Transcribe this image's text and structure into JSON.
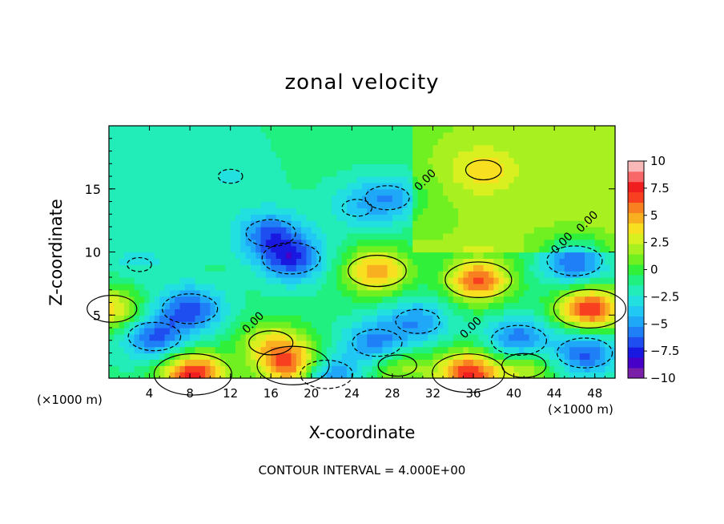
{
  "chart_data": {
    "type": "heatmap",
    "title": "zonal velocity",
    "xlabel": "X-coordinate",
    "ylabel": "Z-coordinate",
    "x_unit": "(×1000 m)",
    "x_unit_right": "(×1000 m)",
    "x_ticks": [
      4,
      8,
      12,
      16,
      20,
      24,
      28,
      32,
      36,
      40,
      44,
      48
    ],
    "y_ticks": [
      5,
      10,
      15
    ],
    "xlim": [
      0,
      50
    ],
    "ylim": [
      0,
      20
    ],
    "colorbar": {
      "ticks": [
        "10",
        "7.5",
        "5",
        "2.5",
        "0",
        "−2.5",
        "−5",
        "−7.5",
        "−10"
      ],
      "levels": [
        -10,
        -9,
        -8,
        -7,
        -6,
        -5,
        -4,
        -3,
        -2,
        -1,
        0,
        1,
        2,
        3,
        4,
        5,
        6,
        7,
        8,
        9,
        10
      ],
      "colors": [
        "#7a1fa8",
        "#4600c8",
        "#1818e0",
        "#1e4ef0",
        "#1f7ff6",
        "#20a8f8",
        "#22c8f4",
        "#23e0e0",
        "#22ecb8",
        "#20f080",
        "#30f03a",
        "#70f020",
        "#a8f020",
        "#d8f020",
        "#f8e020",
        "#f8b020",
        "#f88020",
        "#f84020",
        "#f01e1e",
        "#f86868",
        "#f8b8b8"
      ]
    },
    "contour_labels": [
      "0.00",
      "0.00",
      "0.00",
      "0.00",
      "0.00"
    ],
    "contour_interval_text": "CONTOUR INTERVAL =  4.000E+00",
    "features": [
      {
        "x": 8.3,
        "z": 0.3,
        "u": 11,
        "sign": "positive"
      },
      {
        "x": 18.2,
        "z": 1.0,
        "u": 10,
        "sign": "positive"
      },
      {
        "x": 35.5,
        "z": 0.4,
        "u": 10,
        "sign": "positive"
      },
      {
        "x": 47.5,
        "z": 5.5,
        "u": 10,
        "sign": "positive"
      },
      {
        "x": 36.5,
        "z": 7.8,
        "u": 9,
        "sign": "positive"
      },
      {
        "x": 26.5,
        "z": 8.5,
        "u": 7.5,
        "sign": "positive"
      },
      {
        "x": 0.3,
        "z": 5.5,
        "u": 6,
        "sign": "positive"
      },
      {
        "x": 16,
        "z": 2.8,
        "u": 5,
        "sign": "positive"
      },
      {
        "x": 41,
        "z": 1.0,
        "u": 5,
        "sign": "positive"
      },
      {
        "x": 28.5,
        "z": 1.0,
        "u": 4,
        "sign": "positive"
      },
      {
        "x": 37,
        "z": 16.5,
        "u": 3.5,
        "sign": "positive"
      },
      {
        "x": 18,
        "z": 9.5,
        "u": -7.5,
        "sign": "negative"
      },
      {
        "x": 16,
        "z": 11.5,
        "u": -6,
        "sign": "negative"
      },
      {
        "x": 8,
        "z": 5.5,
        "u": -7,
        "sign": "negative"
      },
      {
        "x": 4.5,
        "z": 3.3,
        "u": -6.5,
        "sign": "negative"
      },
      {
        "x": 47,
        "z": 2.0,
        "u": -7,
        "sign": "negative"
      },
      {
        "x": 46,
        "z": 9.3,
        "u": -7,
        "sign": "negative"
      },
      {
        "x": 40.5,
        "z": 3.0,
        "u": -7,
        "sign": "negative"
      },
      {
        "x": 26.5,
        "z": 2.8,
        "u": -6,
        "sign": "negative"
      },
      {
        "x": 30.5,
        "z": 4.5,
        "u": -5,
        "sign": "negative"
      },
      {
        "x": 27.5,
        "z": 14.3,
        "u": -5,
        "sign": "negative"
      },
      {
        "x": 21.5,
        "z": 0.3,
        "u": -6.5,
        "sign": "negative"
      },
      {
        "x": 24.5,
        "z": 13.5,
        "u": -2.5,
        "sign": "negative"
      },
      {
        "x": 12,
        "z": 16,
        "u": -1.5,
        "sign": "negative"
      },
      {
        "x": 3,
        "z": 9,
        "u": -1.5,
        "sign": "negative"
      }
    ]
  }
}
